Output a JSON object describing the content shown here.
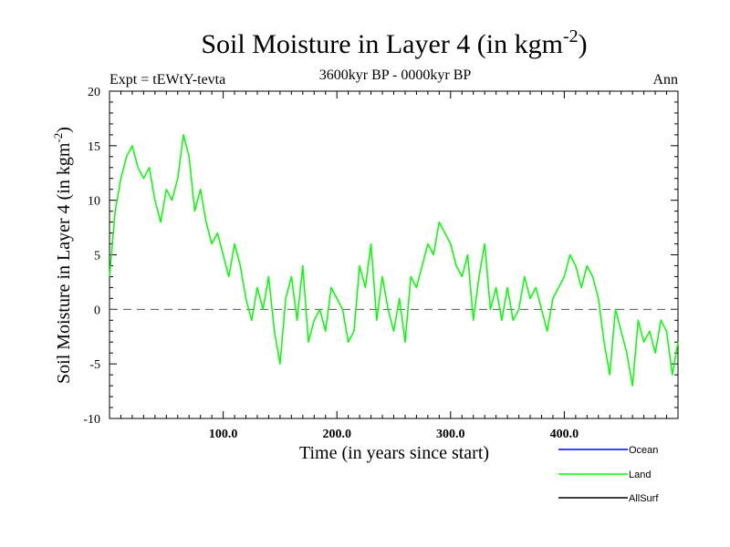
{
  "chart_data": {
    "type": "line",
    "title": "Soil Moisture in Layer 4 (in kgm",
    "title_sup": "-2",
    "title_close": ")",
    "subtitle": "3600kyr BP - 0000kyr BP",
    "expt_label": "Expt = tEWtY-tevta",
    "season_label": "Ann",
    "xlabel": "Time (in years since start)",
    "ylabel": "Soil Moisture in Layer 4 (in kgm",
    "ylabel_sup": "-2",
    "ylabel_close": ")",
    "xlim": [
      0,
      500
    ],
    "ylim": [
      -10,
      20
    ],
    "x_ticks": [
      100,
      200,
      300,
      400
    ],
    "x_tick_labels": [
      "100.0",
      "200.0",
      "300.0",
      "400.0"
    ],
    "y_ticks": [
      -10,
      -5,
      0,
      5,
      10,
      15,
      20
    ],
    "y_tick_labels": [
      "-10",
      "-5",
      "0",
      "5",
      "10",
      "15",
      "20"
    ],
    "reference_line": 0,
    "legend": [
      {
        "name": "Ocean",
        "color": "#0000ff"
      },
      {
        "name": "Land",
        "color": "#00ff00"
      },
      {
        "name": "AllSurf",
        "color": "#000000"
      }
    ],
    "series": [
      {
        "name": "Land",
        "color": "#00ff00",
        "x": [
          0,
          5,
          10,
          15,
          20,
          25,
          30,
          35,
          40,
          45,
          50,
          55,
          60,
          65,
          70,
          75,
          80,
          85,
          90,
          95,
          100,
          105,
          110,
          115,
          120,
          125,
          130,
          135,
          140,
          145,
          150,
          155,
          160,
          165,
          170,
          175,
          180,
          185,
          190,
          195,
          200,
          205,
          210,
          215,
          220,
          225,
          230,
          235,
          240,
          245,
          250,
          255,
          260,
          265,
          270,
          275,
          280,
          285,
          290,
          295,
          300,
          305,
          310,
          315,
          320,
          325,
          330,
          335,
          340,
          345,
          350,
          355,
          360,
          365,
          370,
          375,
          380,
          385,
          390,
          395,
          400,
          405,
          410,
          415,
          420,
          425,
          430,
          435,
          440,
          445,
          450,
          455,
          460,
          465,
          470,
          475,
          480,
          485,
          490,
          495,
          500
        ],
        "y": [
          3,
          9,
          12,
          14,
          15,
          13,
          12,
          13,
          10,
          8,
          11,
          10,
          12,
          16,
          14,
          9,
          11,
          8,
          6,
          7,
          5,
          3,
          6,
          4,
          1,
          -1,
          2,
          0,
          3,
          -2,
          -5,
          1,
          3,
          -1,
          4,
          -3,
          -1,
          0,
          -2,
          2,
          1,
          0,
          -3,
          -2,
          4,
          2,
          6,
          -1,
          3,
          0,
          -2,
          1,
          -3,
          3,
          2,
          4,
          6,
          5,
          8,
          7,
          6,
          4,
          3,
          5,
          -1,
          3,
          6,
          0,
          2,
          -1,
          2,
          -1,
          0,
          3,
          1,
          2,
          0,
          -2,
          1,
          2,
          3,
          5,
          4,
          2,
          4,
          3,
          1,
          -3,
          -6,
          0,
          -2,
          -4,
          -7,
          -1,
          -3,
          -2,
          -4,
          -1,
          -2,
          -6,
          -3
        ]
      }
    ]
  }
}
